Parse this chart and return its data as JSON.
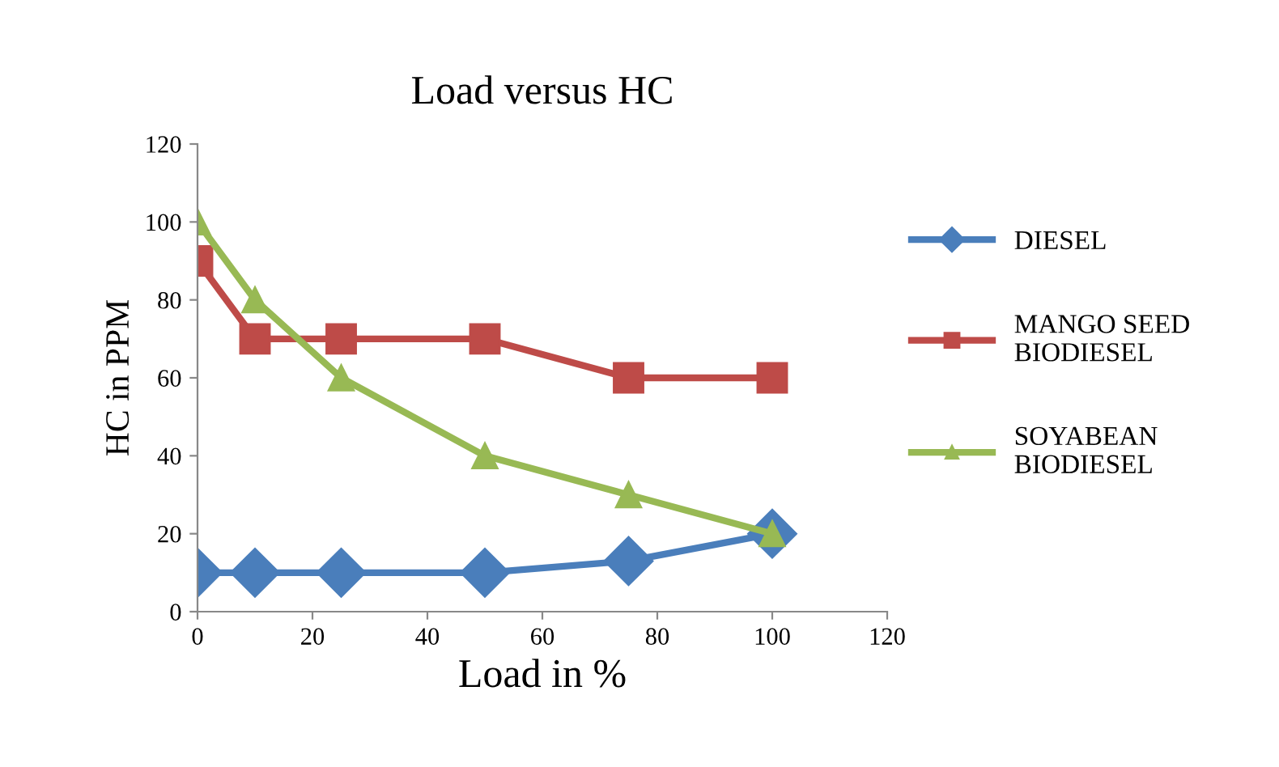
{
  "chart_data": {
    "type": "line",
    "title": "Load versus HC",
    "xlabel": "Load in %",
    "ylabel": "HC in PPM",
    "x": [
      0,
      10,
      25,
      50,
      75,
      100
    ],
    "series": [
      {
        "name": "DIESEL",
        "color": "#4a7ebb",
        "marker": "diamond",
        "values": [
          10,
          10,
          10,
          10,
          13,
          20
        ]
      },
      {
        "name": "MANGO SEED\nBIODIESEL",
        "color": "#be4b48",
        "marker": "square",
        "values": [
          90,
          70,
          70,
          70,
          60,
          60
        ]
      },
      {
        "name": "SOYABEAN\nBIODIESEL",
        "color": "#98b954",
        "marker": "triangle",
        "values": [
          100,
          80,
          60,
          40,
          30,
          20
        ]
      }
    ],
    "xlim": [
      0,
      120
    ],
    "xticks": [
      0,
      20,
      40,
      60,
      80,
      100,
      120
    ],
    "ylim": [
      0,
      120
    ],
    "yticks": [
      0,
      20,
      40,
      60,
      80,
      100,
      120
    ],
    "grid": false,
    "legend": "right",
    "line_style": "solid"
  }
}
